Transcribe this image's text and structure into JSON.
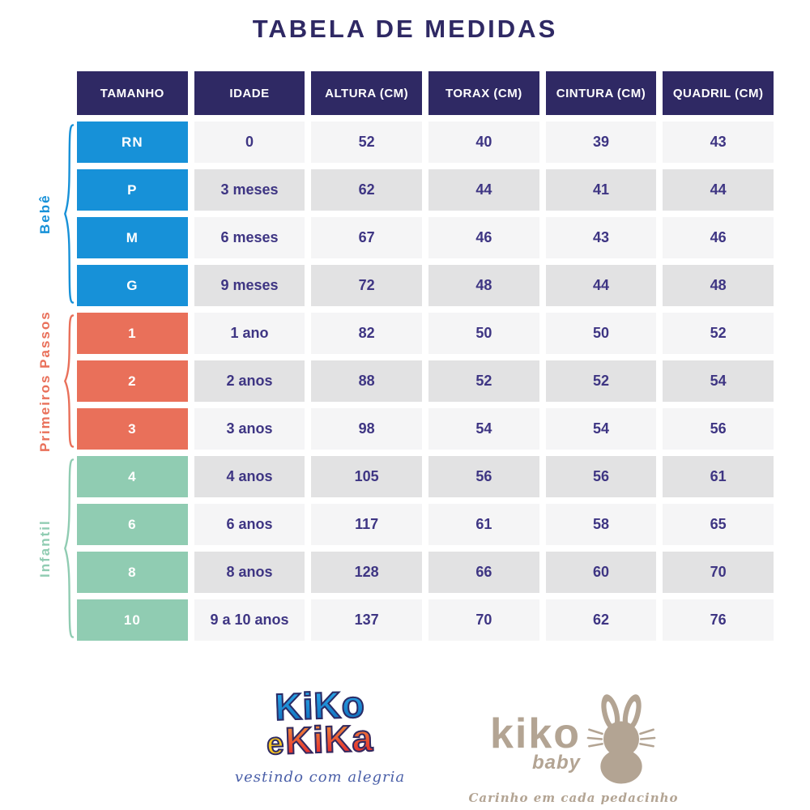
{
  "title": "TABELA DE MEDIDAS",
  "chart_data": {
    "type": "table",
    "title": "TABELA DE MEDIDAS",
    "columns": [
      "TAMANHO",
      "IDADE",
      "ALTURA (CM)",
      "TORAX (CM)",
      "CINTURA (CM)",
      "QUADRIL (CM)"
    ],
    "groups": [
      {
        "label": "Bebê",
        "color": "#1791d8",
        "rows": [
          {
            "size": "RN",
            "idade": "0",
            "altura": "52",
            "torax": "40",
            "cintura": "39",
            "quadril": "43"
          },
          {
            "size": "P",
            "idade": "3 meses",
            "altura": "62",
            "torax": "44",
            "cintura": "41",
            "quadril": "44"
          },
          {
            "size": "M",
            "idade": "6 meses",
            "altura": "67",
            "torax": "46",
            "cintura": "43",
            "quadril": "46"
          },
          {
            "size": "G",
            "idade": "9 meses",
            "altura": "72",
            "torax": "48",
            "cintura": "44",
            "quadril": "48"
          }
        ]
      },
      {
        "label": "Primeiros Passos",
        "color": "#e9705a",
        "rows": [
          {
            "size": "1",
            "idade": "1 ano",
            "altura": "82",
            "torax": "50",
            "cintura": "50",
            "quadril": "52"
          },
          {
            "size": "2",
            "idade": "2 anos",
            "altura": "88",
            "torax": "52",
            "cintura": "52",
            "quadril": "54"
          },
          {
            "size": "3",
            "idade": "3 anos",
            "altura": "98",
            "torax": "54",
            "cintura": "54",
            "quadril": "56"
          }
        ]
      },
      {
        "label": "Infantil",
        "color": "#90ccb2",
        "rows": [
          {
            "size": "4",
            "idade": "4 anos",
            "altura": "105",
            "torax": "56",
            "cintura": "56",
            "quadril": "61"
          },
          {
            "size": "6",
            "idade": "6 anos",
            "altura": "117",
            "torax": "61",
            "cintura": "58",
            "quadril": "65"
          },
          {
            "size": "8",
            "idade": "8 anos",
            "altura": "128",
            "torax": "66",
            "cintura": "60",
            "quadril": "70"
          },
          {
            "size": "10",
            "idade": "9 a 10 anos",
            "altura": "137",
            "torax": "70",
            "cintura": "62",
            "quadril": "76"
          }
        ]
      }
    ]
  },
  "colors": {
    "navy": "#2f2964",
    "cell_text": "#3e3583",
    "row_light": "#f5f5f6",
    "row_dark": "#e2e2e3",
    "blue": "#1791d8",
    "coral": "#e9705a",
    "mint": "#90ccb2",
    "taupe": "#b3a493",
    "script_blue": "#4a5fa8"
  },
  "logos": {
    "kiko_e_kika": {
      "word1": "KiKo",
      "conj": "e",
      "word2": "KiKa",
      "tagline": "vestindo com alegria"
    },
    "kiko_baby": {
      "name": "kiko",
      "sub": "baby",
      "tagline": "Carinho em cada pedacinho"
    }
  }
}
